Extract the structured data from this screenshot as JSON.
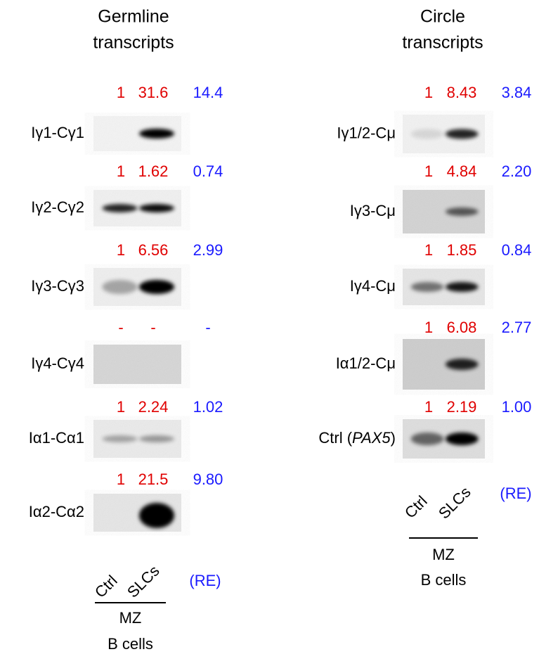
{
  "panels": [
    {
      "title_lines": [
        "Germline",
        "transcripts"
      ],
      "rows": [
        {
          "label": "Iγ1-Cγ1",
          "values": [
            "1",
            "31.6",
            "14.4"
          ]
        },
        {
          "label": "Iγ2-Cγ2",
          "values": [
            "1",
            "1.62",
            "0.74"
          ]
        },
        {
          "label": "Iγ3-Cγ3",
          "values": [
            "1",
            "6.56",
            "2.99"
          ]
        },
        {
          "label": "Iγ4-Cγ4",
          "values": [
            "-",
            "-",
            "-"
          ]
        },
        {
          "label": "Iα1-Cα1",
          "values": [
            "1",
            "2.24",
            "1.02"
          ]
        },
        {
          "label": "Iα2-Cα2",
          "values": [
            "1",
            "21.5",
            "9.80"
          ]
        }
      ],
      "lanes": [
        "Ctrl",
        "SLCs"
      ],
      "unit": "(RE)",
      "group_lines": [
        "MZ",
        "B cells"
      ]
    },
    {
      "title_lines": [
        "Circle",
        "transcripts"
      ],
      "rows": [
        {
          "label": "Iγ1/2-Cμ",
          "values": [
            "1",
            "8.43",
            "3.84"
          ]
        },
        {
          "label": "Iγ3-Cμ",
          "values": [
            "1",
            "4.84",
            "2.20"
          ]
        },
        {
          "label": "Iγ4-Cμ",
          "values": [
            "1",
            "1.85",
            "0.84"
          ]
        },
        {
          "label": "Iα1/2-Cμ",
          "values": [
            "1",
            "6.08",
            "2.77"
          ]
        },
        {
          "label_parts": [
            {
              "text": "Ctrl ("
            },
            {
              "text": "PAX5",
              "italic": true
            },
            {
              "text": ")"
            }
          ],
          "values": [
            "1",
            "2.19",
            "1.00"
          ]
        }
      ],
      "lanes": [
        "Ctrl",
        "SLCs"
      ],
      "unit": "(RE)",
      "group_lines": [
        "MZ",
        "B cells"
      ]
    }
  ]
}
